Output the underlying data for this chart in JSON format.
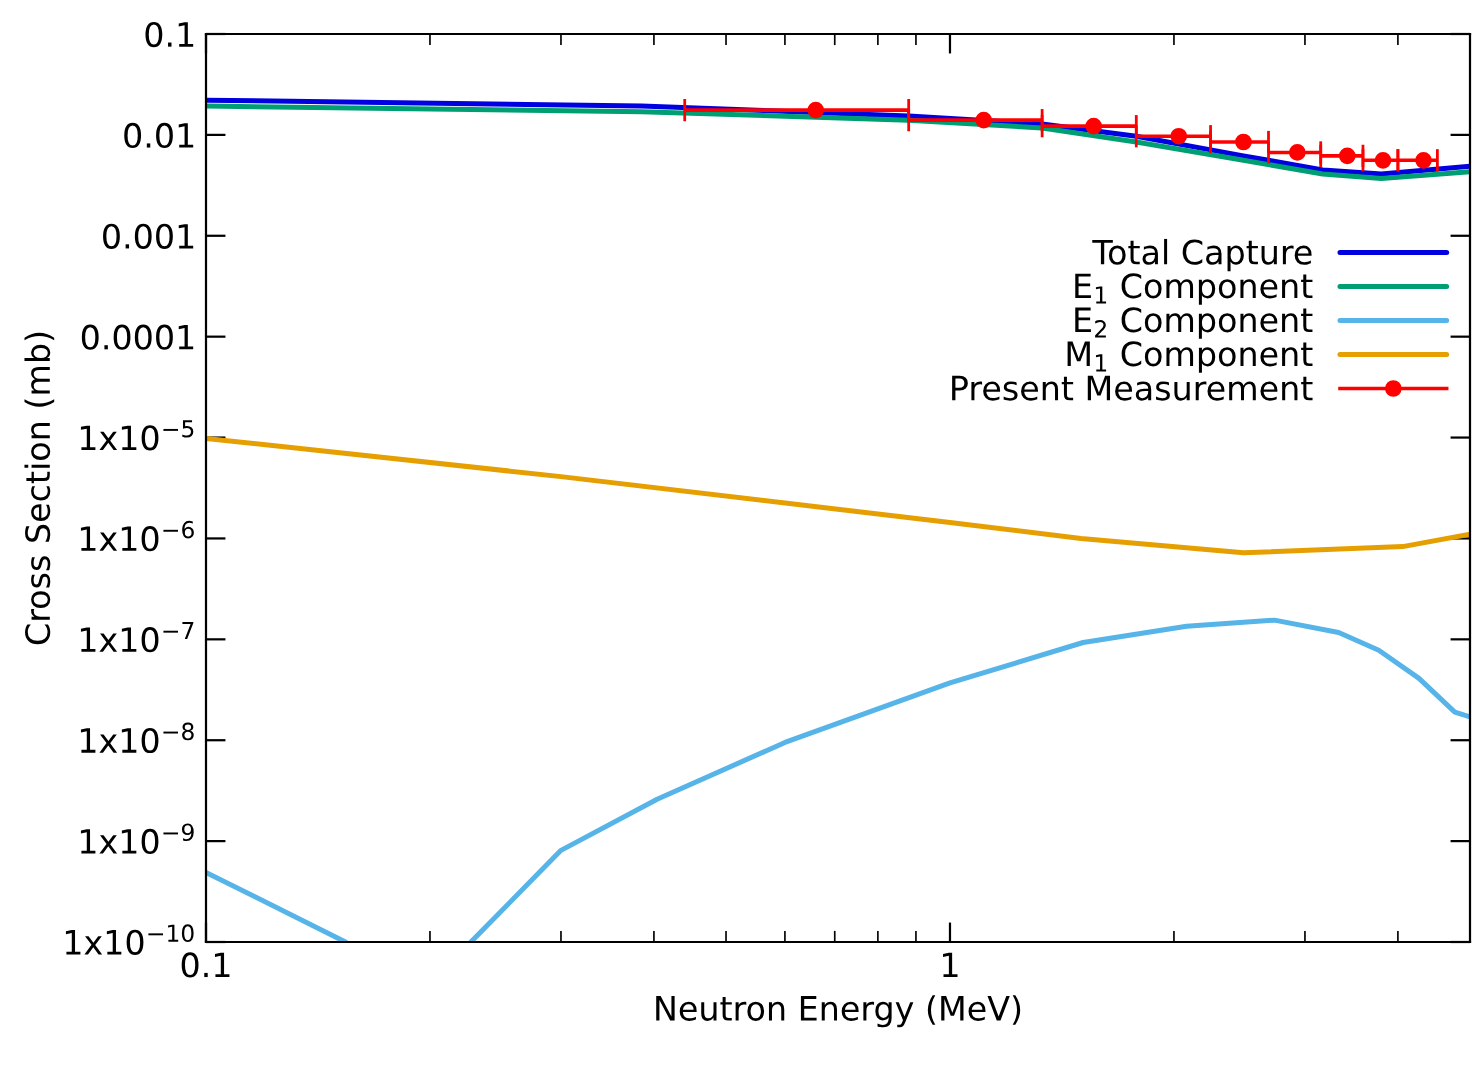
{
  "chart_data": {
    "type": "line",
    "xlabel": "Neutron Energy (MeV)",
    "ylabel": "Cross Section (mb)",
    "log": "xy",
    "xlim": [
      0.1,
      5
    ],
    "xticks": [
      0.1,
      1
    ],
    "ylim": [
      1e-10,
      0.1
    ],
    "yticks": [
      0.1,
      0.01,
      0.001,
      0.0001,
      {
        "value": 1e-05,
        "label": "1x10$^{−5}$"
      },
      {
        "value": 1e-06,
        "label": "1x10$^{−6}$"
      },
      {
        "value": 1e-07,
        "label": "1x10$^{−7}$"
      },
      {
        "value": 1e-08,
        "label": "1x10$^{−8}$"
      },
      {
        "value": 1e-09,
        "label": "1x10$^{−9}$"
      },
      {
        "value": 1e-10,
        "label": "1x10$^{−10}$"
      }
    ],
    "grid": false,
    "legend": "top right",
    "series": [
      {
        "name": "Total Capture",
        "color": "#0000e0",
        "x": [
          0.1,
          0.385,
          0.88,
          1.33,
          1.78,
          2.48,
          3.17,
          3.8,
          5
        ],
        "values": [
          0.0221,
          0.0193,
          0.0154,
          0.0128,
          0.0097,
          0.0062,
          0.0045,
          0.0041,
          0.0049
        ]
      },
      {
        "name": "E$_{1}$ Component",
        "color": "#009e73",
        "x": [
          0.1,
          0.385,
          0.88,
          1.33,
          1.78,
          2.48,
          3.17,
          3.8,
          5
        ],
        "values": [
          0.0193,
          0.017,
          0.014,
          0.0117,
          0.0085,
          0.0056,
          0.0041,
          0.0037,
          0.0043
        ]
      },
      {
        "name": "E$_{2}$ Component",
        "color": "#56b4e9",
        "x": [
          0.1,
          0.154,
          0.19,
          0.227,
          0.3,
          0.404,
          0.6,
          1,
          1.51,
          2.08,
          2.73,
          3.33,
          3.77,
          4.27,
          4.77,
          5
        ],
        "values": [
          4.9e-10,
          1e-10,
          null,
          1e-10,
          8.1e-10,
          2.6e-09,
          9.5e-09,
          3.7e-08,
          9.3e-08,
          1.35e-07,
          1.55e-07,
          1.17e-07,
          7.8e-08,
          4.1e-08,
          1.9e-08,
          1.7e-08
        ]
      },
      {
        "name": "M$_{1}$ Component",
        "color": "#e69f00",
        "x": [
          0.1,
          0.3,
          1,
          1.5,
          2.48,
          4.06,
          5
        ],
        "values": [
          9.8e-06,
          4.1e-06,
          1.44e-06,
          1e-06,
          7.2e-07,
          8.3e-07,
          1.1e-06
        ]
      },
      {
        "name": "Present Measurement",
        "type": "scatter",
        "marker": "circle",
        "color": "#ff0000",
        "x": [
          0.66,
          1.11,
          1.56,
          2.03,
          2.48,
          2.93,
          3.42,
          3.82,
          4.33
        ],
        "values": [
          0.0176,
          0.014,
          0.0122,
          0.0097,
          0.0085,
          0.0067,
          0.0062,
          0.0056,
          0.0056
        ],
        "xerrors": [
          [
            0.44,
            0.88
          ],
          [
            0.88,
            1.33
          ],
          [
            1.33,
            1.78
          ],
          [
            1.78,
            2.24
          ],
          [
            2.24,
            2.68
          ],
          [
            2.68,
            3.15
          ],
          [
            3.15,
            3.59
          ],
          [
            3.59,
            4.0
          ],
          [
            4.0,
            4.52
          ]
        ]
      }
    ]
  }
}
